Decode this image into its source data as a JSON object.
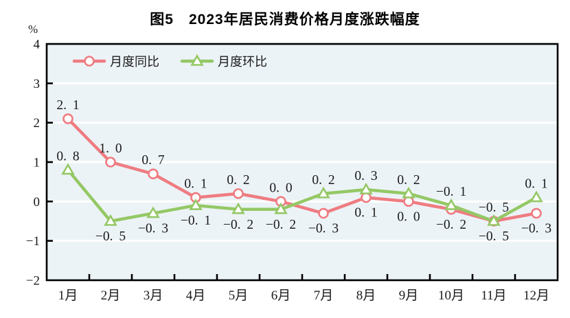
{
  "title": "图5　2023年居民消费价格月度涨跌幅度",
  "axis_unit_label": "%",
  "chart_data": {
    "type": "line",
    "title": "图5　2023年居民消费价格月度涨跌幅度",
    "categories": [
      "1月",
      "2月",
      "3月",
      "4月",
      "5月",
      "6月",
      "7月",
      "8月",
      "9月",
      "10月",
      "11月",
      "12月"
    ],
    "series": [
      {
        "id": "yoy",
        "name": "月度同比",
        "marker": "circle",
        "color": "#ee7c81",
        "values": [
          2.1,
          1.0,
          0.7,
          0.1,
          0.2,
          0.0,
          -0.3,
          0.1,
          0.0,
          -0.2,
          -0.5,
          -0.3
        ],
        "label_position": [
          "above",
          "above",
          "above",
          "above",
          "above",
          "above",
          "below",
          "below",
          "below",
          "below",
          "below",
          "below"
        ]
      },
      {
        "id": "mom",
        "name": "月度环比",
        "marker": "triangle",
        "color": "#94c865",
        "values": [
          0.8,
          -0.5,
          -0.3,
          -0.1,
          -0.2,
          -0.2,
          0.2,
          0.3,
          0.2,
          -0.1,
          -0.5,
          0.1
        ],
        "label_position": [
          "above",
          "below",
          "below",
          "below",
          "below",
          "below",
          "above",
          "above",
          "above",
          "above",
          "above",
          "above"
        ]
      }
    ],
    "ylabel": "%",
    "ylim": [
      -2,
      4
    ],
    "ytick_interval": 1,
    "yticks": [
      4,
      3,
      2,
      1,
      0,
      -1,
      -2
    ],
    "grid": true,
    "legend_position": "top-left-inside",
    "colors": {
      "plot_bg": "#ecf3f7",
      "gridline": "#ffffff",
      "axis": "#000000",
      "text": "#1a1a1a",
      "marker_fill": "#ffffff"
    }
  }
}
